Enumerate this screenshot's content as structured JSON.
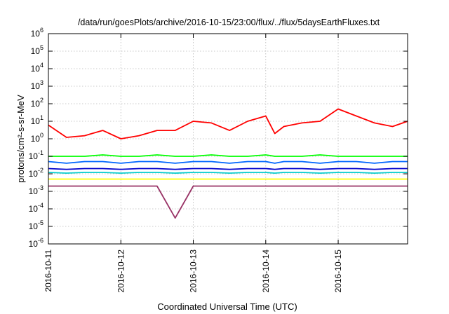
{
  "chart_data": {
    "type": "line",
    "title": "/data/run/goesPlots/archive/2016-10-15/23:00/flux/../flux/5daysEarthFluxes.txt",
    "xlabel": "Coordinated Universal Time (UTC)",
    "ylabel": "protons/cm²-s-sr-MeV",
    "yscale": "log",
    "ylim": [
      1e-06,
      1000000.0
    ],
    "xlim": [
      "2016-10-11",
      "2016-10-15T23:00"
    ],
    "x_tick_labels": [
      "2016-10-11",
      "2016-10-12",
      "2016-10-13",
      "2016-10-14",
      "2016-10-15"
    ],
    "y_tick_labels": [
      {
        "base": "10",
        "exp": "-6"
      },
      {
        "base": "10",
        "exp": "-5"
      },
      {
        "base": "10",
        "exp": "-4"
      },
      {
        "base": "10",
        "exp": "-3"
      },
      {
        "base": "10",
        "exp": "-2"
      },
      {
        "base": "10",
        "exp": "-1"
      },
      {
        "base": "10",
        "exp": "0"
      },
      {
        "base": "10",
        "exp": "1"
      },
      {
        "base": "10",
        "exp": "2"
      },
      {
        "base": "10",
        "exp": "3"
      },
      {
        "base": "10",
        "exp": "4"
      },
      {
        "base": "10",
        "exp": "5"
      },
      {
        "base": "10",
        "exp": "6"
      }
    ],
    "grid": true,
    "legend": "none",
    "x": [
      "2016-10-11T00:00",
      "2016-10-11T06:00",
      "2016-10-11T12:00",
      "2016-10-11T18:00",
      "2016-10-12T00:00",
      "2016-10-12T06:00",
      "2016-10-12T12:00",
      "2016-10-12T18:00",
      "2016-10-13T00:00",
      "2016-10-13T06:00",
      "2016-10-13T12:00",
      "2016-10-13T18:00",
      "2016-10-14T00:00",
      "2016-10-14T03:00",
      "2016-10-14T06:00",
      "2016-10-14T12:00",
      "2016-10-14T18:00",
      "2016-10-15T00:00",
      "2016-10-15T06:00",
      "2016-10-15T12:00",
      "2016-10-15T18:00",
      "2016-10-15T23:00"
    ],
    "series": [
      {
        "color": "#ff0000",
        "values": [
          6,
          1.2,
          1.5,
          3,
          1,
          1.5,
          3,
          3,
          10,
          8,
          3,
          10,
          20,
          2,
          5,
          8,
          10,
          50,
          20,
          8,
          5,
          10
        ]
      },
      {
        "color": "#00ff00",
        "values": [
          0.1,
          0.1,
          0.1,
          0.12,
          0.1,
          0.1,
          0.12,
          0.1,
          0.1,
          0.12,
          0.1,
          0.1,
          0.12,
          0.1,
          0.1,
          0.1,
          0.12,
          0.1,
          0.1,
          0.1,
          0.1,
          0.1
        ]
      },
      {
        "color": "#0066ff",
        "values": [
          0.05,
          0.04,
          0.05,
          0.05,
          0.04,
          0.05,
          0.05,
          0.04,
          0.05,
          0.05,
          0.04,
          0.05,
          0.05,
          0.04,
          0.05,
          0.05,
          0.04,
          0.05,
          0.05,
          0.04,
          0.05,
          0.05
        ]
      },
      {
        "color": "#0000cc",
        "values": [
          0.02,
          0.018,
          0.02,
          0.02,
          0.018,
          0.02,
          0.02,
          0.018,
          0.02,
          0.02,
          0.018,
          0.02,
          0.02,
          0.018,
          0.02,
          0.02,
          0.018,
          0.02,
          0.02,
          0.018,
          0.02,
          0.02
        ]
      },
      {
        "color": "#00cccc",
        "values": [
          0.012,
          0.011,
          0.012,
          0.012,
          0.011,
          0.012,
          0.012,
          0.011,
          0.012,
          0.012,
          0.011,
          0.012,
          0.012,
          0.011,
          0.012,
          0.012,
          0.011,
          0.012,
          0.012,
          0.011,
          0.012,
          0.012
        ]
      },
      {
        "color": "#ffff00",
        "values": [
          0.005,
          0.005,
          0.005,
          0.005,
          0.005,
          0.005,
          0.005,
          0.005,
          0.005,
          0.005,
          0.005,
          0.005,
          0.005,
          0.005,
          0.005,
          0.005,
          0.005,
          0.005,
          0.005,
          0.005,
          0.005,
          0.005
        ]
      },
      {
        "color": "#993366",
        "values": [
          0.002,
          0.002,
          0.002,
          0.002,
          0.002,
          0.002,
          0.002,
          3e-05,
          0.002,
          0.002,
          0.002,
          0.002,
          0.002,
          0.002,
          0.002,
          0.002,
          0.002,
          0.002,
          0.002,
          0.002,
          0.002,
          0.002
        ]
      }
    ]
  }
}
